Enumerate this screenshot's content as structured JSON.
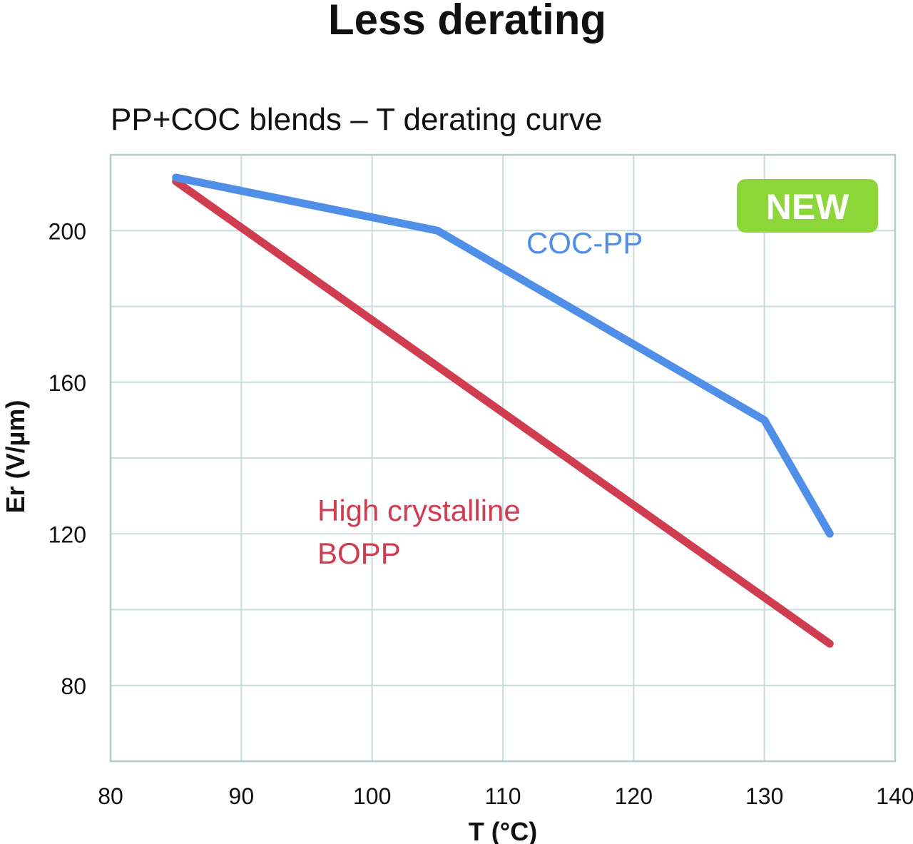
{
  "chart_data": {
    "type": "line",
    "title": "Less derating",
    "subtitle": "PP+COC blends – T derating curve",
    "xlabel": "T (°C)",
    "ylabel": "Er (V/µm)",
    "xlim": [
      80,
      140
    ],
    "ylim": [
      60,
      220
    ],
    "x_ticks": [
      80,
      90,
      100,
      110,
      120,
      130,
      140
    ],
    "y_ticks": [
      80,
      120,
      160,
      200
    ],
    "x_tick_labels": [
      "80",
      "90",
      "100",
      "110",
      "120",
      "130",
      "140"
    ],
    "y_tick_labels": [
      "80",
      "120",
      "160",
      "200"
    ],
    "grid": true,
    "x_gridlines": [
      90,
      100,
      110,
      120,
      130
    ],
    "y_gridlines": [
      80,
      100,
      120,
      140,
      160,
      180,
      200
    ],
    "series": [
      {
        "name": "COC-PP",
        "color": "#4f8fe8",
        "x": [
          85,
          105,
          130,
          135
        ],
        "y": [
          214,
          200,
          150,
          120
        ]
      },
      {
        "name": "High crystalline BOPP",
        "label_lines": [
          "High crystalline",
          "BOPP"
        ],
        "color": "#d03c50",
        "x": [
          85,
          135
        ],
        "y": [
          213,
          91
        ]
      }
    ],
    "badge": {
      "text": "NEW",
      "color": "#8dd63a"
    }
  }
}
